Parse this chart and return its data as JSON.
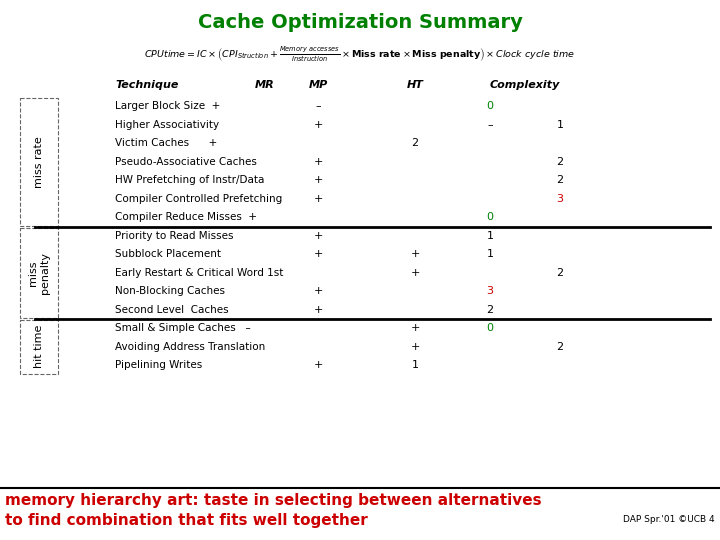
{
  "title": "Cache Optimization Summary",
  "title_color": "#008000",
  "bg_color": "#ffffff",
  "sections": [
    {
      "label": "miss rate",
      "rows": [
        {
          "technique": "Larger Block Size  +",
          "mr": "",
          "mp": "–",
          "ht": "",
          "complexity": "0",
          "complexity_color": "#008000",
          "extra": ""
        },
        {
          "technique": "Higher Associativity",
          "mr": "",
          "mp": "+",
          "ht": "",
          "complexity": "–",
          "complexity_color": "#000000",
          "extra": "1",
          "extra_color": "#000000"
        },
        {
          "technique": "Victim Caches      +",
          "mr": "",
          "mp": "",
          "ht": "2",
          "complexity": "",
          "complexity_color": "#000000",
          "extra": ""
        },
        {
          "technique": "Pseudo-Associative Caches",
          "mr": "",
          "mp": "+",
          "ht": "",
          "complexity": "",
          "complexity_color": "#000000",
          "extra": "2",
          "extra_color": "#000000"
        },
        {
          "technique": "HW Prefetching of Instr/Data",
          "mr": "",
          "mp": "+",
          "ht": "",
          "complexity": "",
          "complexity_color": "#000000",
          "extra": "2",
          "extra_color": "#000000"
        },
        {
          "technique": "Compiler Controlled Prefetching",
          "mr": "",
          "mp": "+",
          "ht": "",
          "complexity": "",
          "complexity_color": "#000000",
          "extra": "3",
          "extra_color": "#cc0000"
        },
        {
          "technique": "Compiler Reduce Misses  +",
          "mr": "",
          "mp": "",
          "ht": "",
          "complexity": "0",
          "complexity_color": "#008000",
          "extra": ""
        }
      ]
    },
    {
      "label": "miss\npenalty",
      "rows": [
        {
          "technique": "Priority to Read Misses",
          "mr": "",
          "mp": "+",
          "ht": "",
          "complexity": "1",
          "complexity_color": "#000000",
          "extra": ""
        },
        {
          "technique": "Subblock Placement",
          "mr": "",
          "mp": "+",
          "ht": "+",
          "complexity": "1",
          "complexity_color": "#000000",
          "extra": ""
        },
        {
          "technique": "Early Restart & Critical Word 1st",
          "mr": "",
          "mp": "",
          "ht": "+",
          "complexity": "",
          "complexity_color": "#000000",
          "extra": "2",
          "extra_color": "#000000"
        },
        {
          "technique": "Non-Blocking Caches",
          "mr": "",
          "mp": "+",
          "ht": "",
          "complexity": "3",
          "complexity_color": "#cc0000",
          "extra": ""
        },
        {
          "technique": "Second Level  Caches",
          "mr": "",
          "mp": "+",
          "ht": "",
          "complexity": "2",
          "complexity_color": "#000000",
          "extra": ""
        }
      ]
    },
    {
      "label": "hit time",
      "rows": [
        {
          "technique": "Small & Simple Caches   –",
          "mr": "",
          "mp": "",
          "ht": "+",
          "complexity": "0",
          "complexity_color": "#008000",
          "extra": ""
        },
        {
          "technique": "Avoiding Address Translation",
          "mr": "",
          "mp": "",
          "ht": "+",
          "complexity": "",
          "complexity_color": "#000000",
          "extra": "2",
          "extra_color": "#000000"
        },
        {
          "technique": "Pipelining Writes",
          "mr": "",
          "mp": "+",
          "ht": "1",
          "complexity": "",
          "complexity_color": "#000000",
          "extra": ""
        }
      ]
    }
  ],
  "footer_text_line1": "memory hierarchy art: taste in selecting between alternatives",
  "footer_text_line2": "to find combination that fits well together",
  "footer_color": "#cc0000",
  "footer_bg": "#ffffff",
  "footer_label": "DAP Spr.'01 ©UCB 4",
  "footer_label_color": "#000000"
}
